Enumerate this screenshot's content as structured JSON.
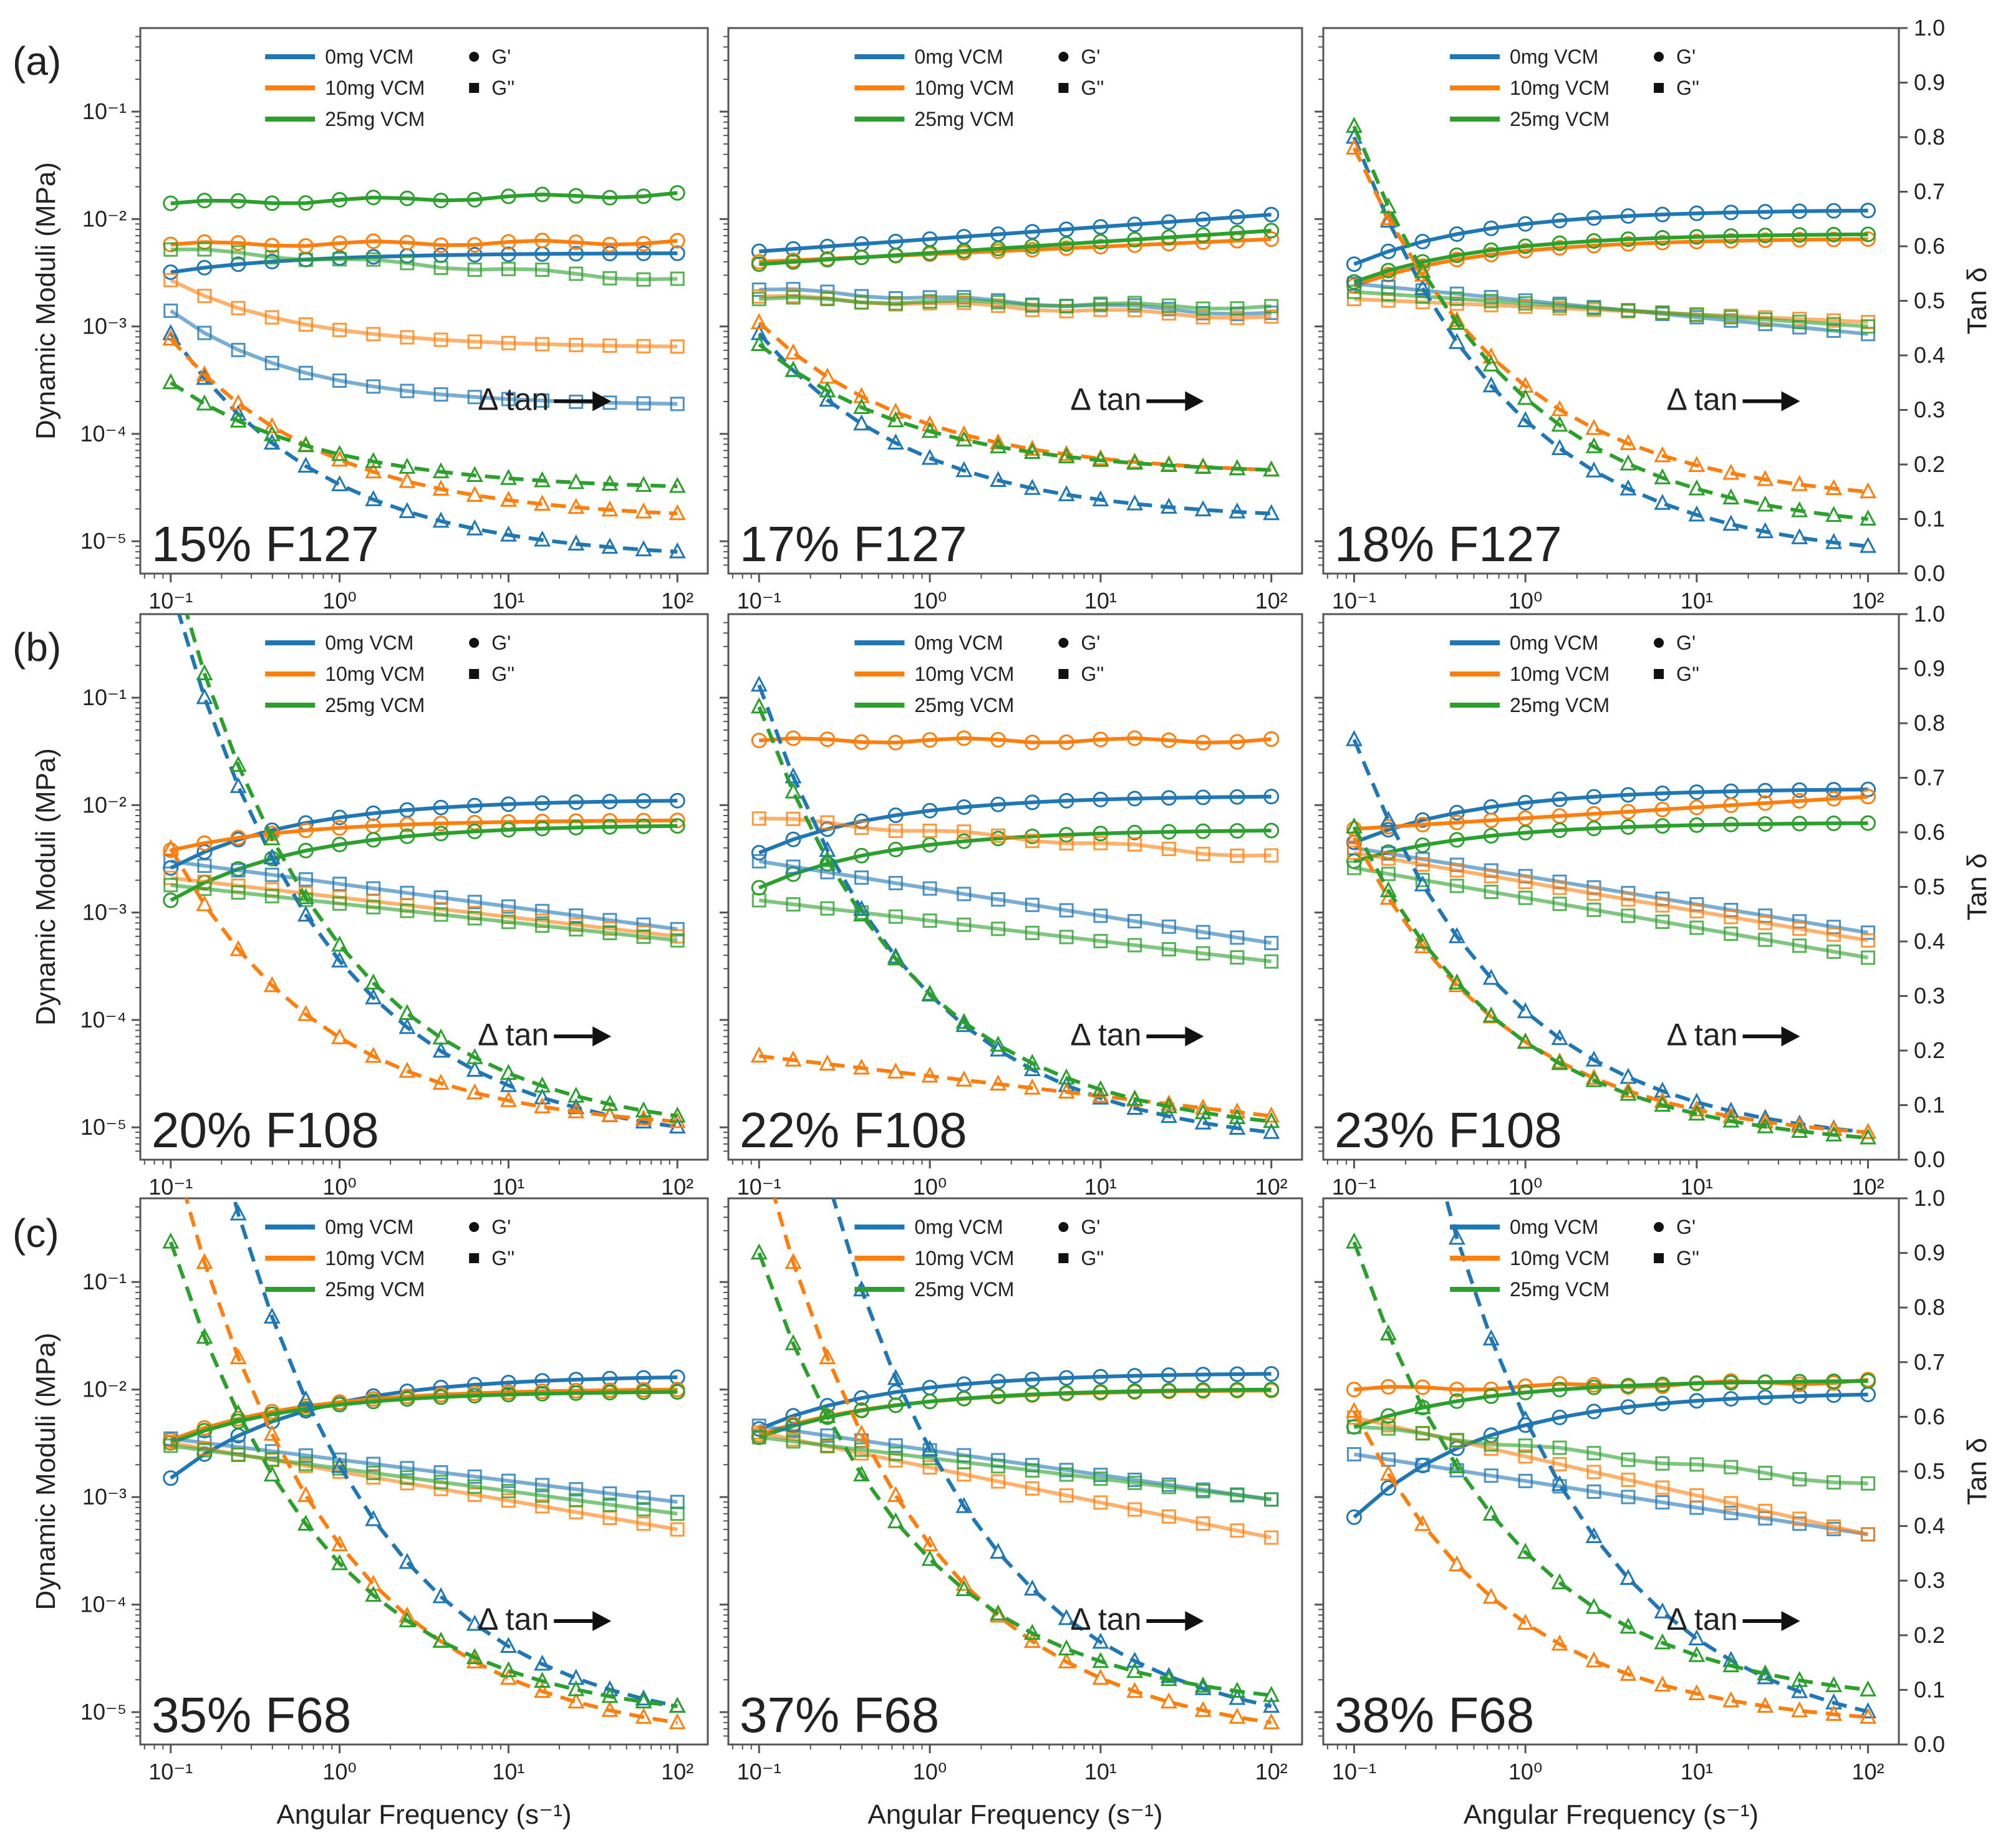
{
  "figure": {
    "row_labels": [
      "(a)",
      "(b)",
      "(c)"
    ],
    "x_axis_label": "Angular Frequency (s⁻¹)",
    "y_left_label": "Dynamic Moduli (MPa)",
    "y_right_label": "Tan δ",
    "legend": {
      "series": [
        "0mg VCM",
        "10mg VCM",
        "25mg VCM"
      ],
      "markers": [
        "G'",
        "G''"
      ]
    },
    "annotation": "Δ tan",
    "x_ticks": [
      "10⁻¹",
      "10⁰",
      "10¹",
      "10²"
    ],
    "y_left_ticks": [
      "10⁻⁵",
      "10⁻⁴",
      "10⁻³",
      "10⁻²",
      "10⁻¹"
    ],
    "y_right_ticks": [
      "0.0",
      "0.1",
      "0.2",
      "0.3",
      "0.4",
      "0.5",
      "0.6",
      "0.7",
      "0.8",
      "0.9",
      "1.0"
    ],
    "colors": {
      "blue": "#1f77b4",
      "orange": "#ff7f0e",
      "green": "#2ca02c"
    }
  },
  "chart_data": [
    {
      "type": "line",
      "title": "15% F127",
      "xlabel": "Angular Frequency (s^-1)",
      "ylabel": "Dynamic Moduli (MPa)",
      "y2label": "Tan δ",
      "xlim": [
        0.1,
        100
      ],
      "ylim": [
        5e-06,
        0.6
      ],
      "y2lim": [
        0,
        1
      ],
      "xscale": "log",
      "yscale": "log",
      "series": [
        {
          "name": "0mg VCM G'",
          "color": "blue",
          "kind": "Gp",
          "start": 0.0032,
          "end": 0.0048,
          "shape": "sat"
        },
        {
          "name": "10mg VCM G'",
          "color": "orange",
          "kind": "Gp",
          "start": 0.0058,
          "end": 0.0061,
          "shape": "flat"
        },
        {
          "name": "25mg VCM G'",
          "color": "green",
          "kind": "Gp",
          "start": 0.014,
          "end": 0.017,
          "shape": "flat"
        },
        {
          "name": "0mg VCM G''",
          "color": "blue",
          "kind": "Gpp",
          "start": 0.0014,
          "end": 0.00019,
          "shape": "sat"
        },
        {
          "name": "10mg VCM G''",
          "color": "orange",
          "kind": "Gpp",
          "start": 0.0027,
          "end": 0.00065,
          "shape": "sat"
        },
        {
          "name": "25mg VCM G''",
          "color": "green",
          "kind": "Gpp",
          "start": 0.0052,
          "end": 0.0027,
          "shape": "flat"
        },
        {
          "name": "0mg VCM tan δ",
          "color": "blue",
          "kind": "tan",
          "start": 0.44,
          "end": 0.04,
          "shape": "decay"
        },
        {
          "name": "10mg VCM tan δ",
          "color": "orange",
          "kind": "tan",
          "start": 0.43,
          "end": 0.11,
          "shape": "decay"
        },
        {
          "name": "25mg VCM tan δ",
          "color": "green",
          "kind": "tan",
          "start": 0.35,
          "end": 0.16,
          "shape": "decay"
        }
      ]
    },
    {
      "type": "line",
      "title": "17% F127",
      "xlim": [
        0.1,
        100
      ],
      "ylim": [
        5e-06,
        0.6
      ],
      "y2lim": [
        0,
        1
      ],
      "xscale": "log",
      "yscale": "log",
      "series": [
        {
          "name": "0mg VCM G'",
          "color": "blue",
          "kind": "Gp",
          "start": 0.005,
          "end": 0.011,
          "shape": "lin"
        },
        {
          "name": "10mg VCM G'",
          "color": "orange",
          "kind": "Gp",
          "start": 0.004,
          "end": 0.0065,
          "shape": "lin"
        },
        {
          "name": "25mg VCM G'",
          "color": "green",
          "kind": "Gp",
          "start": 0.0038,
          "end": 0.0078,
          "shape": "lin"
        },
        {
          "name": "0mg VCM G''",
          "color": "blue",
          "kind": "Gpp",
          "start": 0.0022,
          "end": 0.0013,
          "shape": "flat"
        },
        {
          "name": "10mg VCM G''",
          "color": "orange",
          "kind": "Gpp",
          "start": 0.0019,
          "end": 0.0012,
          "shape": "flat"
        },
        {
          "name": "25mg VCM G''",
          "color": "green",
          "kind": "Gpp",
          "start": 0.0018,
          "end": 0.0015,
          "shape": "flat"
        },
        {
          "name": "0mg VCM tan δ",
          "color": "blue",
          "kind": "tan",
          "start": 0.44,
          "end": 0.11,
          "shape": "decay"
        },
        {
          "name": "10mg VCM tan δ",
          "color": "orange",
          "kind": "tan",
          "start": 0.46,
          "end": 0.19,
          "shape": "decay"
        },
        {
          "name": "25mg VCM tan δ",
          "color": "green",
          "kind": "tan",
          "start": 0.42,
          "end": 0.19,
          "shape": "decay"
        }
      ]
    },
    {
      "type": "line",
      "title": "18% F127",
      "xlim": [
        0.1,
        100
      ],
      "ylim": [
        5e-06,
        0.6
      ],
      "y2lim": [
        0,
        1
      ],
      "xscale": "log",
      "yscale": "log",
      "series": [
        {
          "name": "0mg VCM G'",
          "color": "blue",
          "kind": "Gp",
          "start": 0.0038,
          "end": 0.012,
          "shape": "sat"
        },
        {
          "name": "10mg VCM G'",
          "color": "orange",
          "kind": "Gp",
          "start": 0.0024,
          "end": 0.0065,
          "shape": "sat"
        },
        {
          "name": "25mg VCM G'",
          "color": "green",
          "kind": "Gp",
          "start": 0.0026,
          "end": 0.0072,
          "shape": "sat"
        },
        {
          "name": "0mg VCM G''",
          "color": "blue",
          "kind": "Gpp",
          "start": 0.0025,
          "end": 0.00085,
          "shape": "lin"
        },
        {
          "name": "10mg VCM G''",
          "color": "orange",
          "kind": "Gpp",
          "start": 0.0018,
          "end": 0.0011,
          "shape": "lin"
        },
        {
          "name": "25mg VCM G''",
          "color": "green",
          "kind": "Gpp",
          "start": 0.0021,
          "end": 0.001,
          "shape": "lin"
        },
        {
          "name": "0mg VCM tan δ",
          "color": "blue",
          "kind": "tan",
          "start": 0.8,
          "end": 0.05,
          "shape": "decay"
        },
        {
          "name": "10mg VCM tan δ",
          "color": "orange",
          "kind": "tan",
          "start": 0.78,
          "end": 0.15,
          "shape": "decay"
        },
        {
          "name": "25mg VCM tan δ",
          "color": "green",
          "kind": "tan",
          "start": 0.82,
          "end": 0.1,
          "shape": "decay"
        }
      ]
    },
    {
      "type": "line",
      "title": "20% F108",
      "xlim": [
        0.1,
        100
      ],
      "ylim": [
        5e-06,
        0.6
      ],
      "y2lim": [
        0,
        1
      ],
      "xscale": "log",
      "yscale": "log",
      "series": [
        {
          "name": "0mg VCM G'",
          "color": "blue",
          "kind": "Gp",
          "start": 0.0026,
          "end": 0.011,
          "shape": "sat"
        },
        {
          "name": "10mg VCM G'",
          "color": "orange",
          "kind": "Gp",
          "start": 0.0038,
          "end": 0.0072,
          "shape": "sat"
        },
        {
          "name": "25mg VCM G'",
          "color": "green",
          "kind": "Gp",
          "start": 0.0013,
          "end": 0.0064,
          "shape": "sat"
        },
        {
          "name": "0mg VCM G''",
          "color": "blue",
          "kind": "Gpp",
          "start": 0.003,
          "end": 0.0007,
          "shape": "lin"
        },
        {
          "name": "10mg VCM G''",
          "color": "orange",
          "kind": "Gpp",
          "start": 0.0021,
          "end": 0.0006,
          "shape": "lin"
        },
        {
          "name": "25mg VCM G''",
          "color": "green",
          "kind": "Gpp",
          "start": 0.0018,
          "end": 0.00055,
          "shape": "lin"
        },
        {
          "name": "0mg VCM tan δ",
          "color": "blue",
          "kind": "tan",
          "start": 1.05,
          "end": 0.06,
          "shape": "decay"
        },
        {
          "name": "10mg VCM tan δ",
          "color": "orange",
          "kind": "tan",
          "start": 0.57,
          "end": 0.07,
          "shape": "decay"
        },
        {
          "name": "25mg VCM tan δ",
          "color": "green",
          "kind": "tan",
          "start": 1.1,
          "end": 0.08,
          "shape": "decay"
        }
      ]
    },
    {
      "type": "line",
      "title": "22% F108",
      "xlim": [
        0.1,
        100
      ],
      "ylim": [
        5e-06,
        0.6
      ],
      "y2lim": [
        0,
        1
      ],
      "xscale": "log",
      "yscale": "log",
      "series": [
        {
          "name": "0mg VCM G'",
          "color": "blue",
          "kind": "Gp",
          "start": 0.0036,
          "end": 0.012,
          "shape": "sat"
        },
        {
          "name": "10mg VCM G'",
          "color": "orange",
          "kind": "Gp",
          "start": 0.04,
          "end": 0.04,
          "shape": "flat"
        },
        {
          "name": "25mg VCM G'",
          "color": "green",
          "kind": "Gp",
          "start": 0.0017,
          "end": 0.0058,
          "shape": "sat"
        },
        {
          "name": "0mg VCM G''",
          "color": "blue",
          "kind": "Gpp",
          "start": 0.003,
          "end": 0.00052,
          "shape": "lin"
        },
        {
          "name": "10mg VCM G''",
          "color": "orange",
          "kind": "Gpp",
          "start": 0.0075,
          "end": 0.0033,
          "shape": "flat"
        },
        {
          "name": "25mg VCM G''",
          "color": "green",
          "kind": "Gpp",
          "start": 0.0013,
          "end": 0.00035,
          "shape": "lin"
        },
        {
          "name": "0mg VCM tan δ",
          "color": "blue",
          "kind": "tan",
          "start": 0.87,
          "end": 0.05,
          "shape": "decay"
        },
        {
          "name": "10mg VCM tan δ",
          "color": "orange",
          "kind": "tan",
          "start": 0.19,
          "end": 0.08,
          "shape": "flat"
        },
        {
          "name": "25mg VCM tan δ",
          "color": "green",
          "kind": "tan",
          "start": 0.83,
          "end": 0.07,
          "shape": "decay"
        }
      ]
    },
    {
      "type": "line",
      "title": "23% F108",
      "xlim": [
        0.1,
        100
      ],
      "ylim": [
        5e-06,
        0.6
      ],
      "y2lim": [
        0,
        1
      ],
      "xscale": "log",
      "yscale": "log",
      "series": [
        {
          "name": "0mg VCM G'",
          "color": "blue",
          "kind": "Gp",
          "start": 0.0045,
          "end": 0.014,
          "shape": "sat"
        },
        {
          "name": "10mg VCM G'",
          "color": "orange",
          "kind": "Gp",
          "start": 0.006,
          "end": 0.012,
          "shape": "lin"
        },
        {
          "name": "25mg VCM G'",
          "color": "green",
          "kind": "Gp",
          "start": 0.003,
          "end": 0.0068,
          "shape": "sat"
        },
        {
          "name": "0mg VCM G''",
          "color": "blue",
          "kind": "Gpp",
          "start": 0.004,
          "end": 0.00065,
          "shape": "lin"
        },
        {
          "name": "10mg VCM G''",
          "color": "orange",
          "kind": "Gpp",
          "start": 0.0036,
          "end": 0.00055,
          "shape": "lin"
        },
        {
          "name": "25mg VCM G''",
          "color": "green",
          "kind": "Gpp",
          "start": 0.0026,
          "end": 0.00038,
          "shape": "lin"
        },
        {
          "name": "0mg VCM tan δ",
          "color": "blue",
          "kind": "tan",
          "start": 0.77,
          "end": 0.05,
          "shape": "decay"
        },
        {
          "name": "10mg VCM tan δ",
          "color": "orange",
          "kind": "tan",
          "start": 0.59,
          "end": 0.05,
          "shape": "decay"
        },
        {
          "name": "25mg VCM tan δ",
          "color": "green",
          "kind": "tan",
          "start": 0.61,
          "end": 0.04,
          "shape": "decay"
        }
      ]
    },
    {
      "type": "line",
      "title": "35% F68",
      "xlim": [
        0.1,
        100
      ],
      "ylim": [
        5e-06,
        0.6
      ],
      "y2lim": [
        0,
        1
      ],
      "xscale": "log",
      "yscale": "log",
      "series": [
        {
          "name": "0mg VCM G'",
          "color": "blue",
          "kind": "Gp",
          "start": 0.0015,
          "end": 0.013,
          "shape": "sat"
        },
        {
          "name": "10mg VCM G'",
          "color": "orange",
          "kind": "Gp",
          "start": 0.0034,
          "end": 0.01,
          "shape": "sat"
        },
        {
          "name": "25mg VCM G'",
          "color": "green",
          "kind": "Gp",
          "start": 0.0032,
          "end": 0.0095,
          "shape": "sat"
        },
        {
          "name": "0mg VCM G''",
          "color": "blue",
          "kind": "Gpp",
          "start": 0.0035,
          "end": 0.0009,
          "shape": "lin"
        },
        {
          "name": "10mg VCM G''",
          "color": "orange",
          "kind": "Gpp",
          "start": 0.0032,
          "end": 0.0005,
          "shape": "lin"
        },
        {
          "name": "25mg VCM G''",
          "color": "green",
          "kind": "Gpp",
          "start": 0.003,
          "end": 0.0007,
          "shape": "lin"
        },
        {
          "name": "0mg VCM tan δ",
          "color": "blue",
          "kind": "tan",
          "start": 1.5,
          "end": 0.07,
          "shape": "decay"
        },
        {
          "name": "10mg VCM tan δ",
          "color": "orange",
          "kind": "tan",
          "start": 1.1,
          "end": 0.04,
          "shape": "decay"
        },
        {
          "name": "25mg VCM tan δ",
          "color": "green",
          "kind": "tan",
          "start": 0.92,
          "end": 0.07,
          "shape": "decay"
        }
      ]
    },
    {
      "type": "line",
      "title": "37% F68",
      "xlim": [
        0.1,
        100
      ],
      "ylim": [
        5e-06,
        0.6
      ],
      "y2lim": [
        0,
        1
      ],
      "xscale": "log",
      "yscale": "log",
      "series": [
        {
          "name": "0mg VCM G'",
          "color": "blue",
          "kind": "Gp",
          "start": 0.0043,
          "end": 0.014,
          "shape": "sat"
        },
        {
          "name": "10mg VCM G'",
          "color": "orange",
          "kind": "Gp",
          "start": 0.0038,
          "end": 0.0098,
          "shape": "sat"
        },
        {
          "name": "25mg VCM G'",
          "color": "green",
          "kind": "Gp",
          "start": 0.0036,
          "end": 0.01,
          "shape": "sat"
        },
        {
          "name": "0mg VCM G''",
          "color": "blue",
          "kind": "Gpp",
          "start": 0.0046,
          "end": 0.00095,
          "shape": "lin"
        },
        {
          "name": "10mg VCM G''",
          "color": "orange",
          "kind": "Gpp",
          "start": 0.004,
          "end": 0.00042,
          "shape": "lin"
        },
        {
          "name": "25mg VCM G''",
          "color": "green",
          "kind": "Gpp",
          "start": 0.0036,
          "end": 0.00095,
          "shape": "lin"
        },
        {
          "name": "0mg VCM tan δ",
          "color": "blue",
          "kind": "tan",
          "start": 1.6,
          "end": 0.07,
          "shape": "decay"
        },
        {
          "name": "10mg VCM tan δ",
          "color": "orange",
          "kind": "tan",
          "start": 1.1,
          "end": 0.04,
          "shape": "decay"
        },
        {
          "name": "25mg VCM tan δ",
          "color": "green",
          "kind": "tan",
          "start": 0.9,
          "end": 0.09,
          "shape": "decay"
        }
      ]
    },
    {
      "type": "line",
      "title": "38% F68",
      "xlim": [
        0.1,
        100
      ],
      "ylim": [
        5e-06,
        0.6
      ],
      "y2lim": [
        0,
        1
      ],
      "xscale": "log",
      "yscale": "log",
      "series": [
        {
          "name": "0mg VCM G'",
          "color": "blue",
          "kind": "Gp",
          "start": 0.00065,
          "end": 0.009,
          "shape": "sat"
        },
        {
          "name": "10mg VCM G'",
          "color": "orange",
          "kind": "Gp",
          "start": 0.01,
          "end": 0.012,
          "shape": "flat"
        },
        {
          "name": "25mg VCM G'",
          "color": "green",
          "kind": "Gp",
          "start": 0.0045,
          "end": 0.012,
          "shape": "sat"
        },
        {
          "name": "0mg VCM G''",
          "color": "blue",
          "kind": "Gpp",
          "start": 0.0025,
          "end": 0.00045,
          "shape": "lin"
        },
        {
          "name": "10mg VCM G''",
          "color": "orange",
          "kind": "Gpp",
          "start": 0.0055,
          "end": 0.00045,
          "shape": "lin"
        },
        {
          "name": "25mg VCM G''",
          "color": "green",
          "kind": "Gpp",
          "start": 0.0045,
          "end": 0.0013,
          "shape": "flat"
        },
        {
          "name": "0mg VCM tan δ",
          "color": "blue",
          "kind": "tan",
          "start": 1.8,
          "end": 0.06,
          "shape": "decay"
        },
        {
          "name": "10mg VCM tan δ",
          "color": "orange",
          "kind": "tan",
          "start": 0.61,
          "end": 0.05,
          "shape": "decay"
        },
        {
          "name": "25mg VCM tan δ",
          "color": "green",
          "kind": "tan",
          "start": 0.92,
          "end": 0.1,
          "shape": "decay"
        }
      ]
    }
  ]
}
